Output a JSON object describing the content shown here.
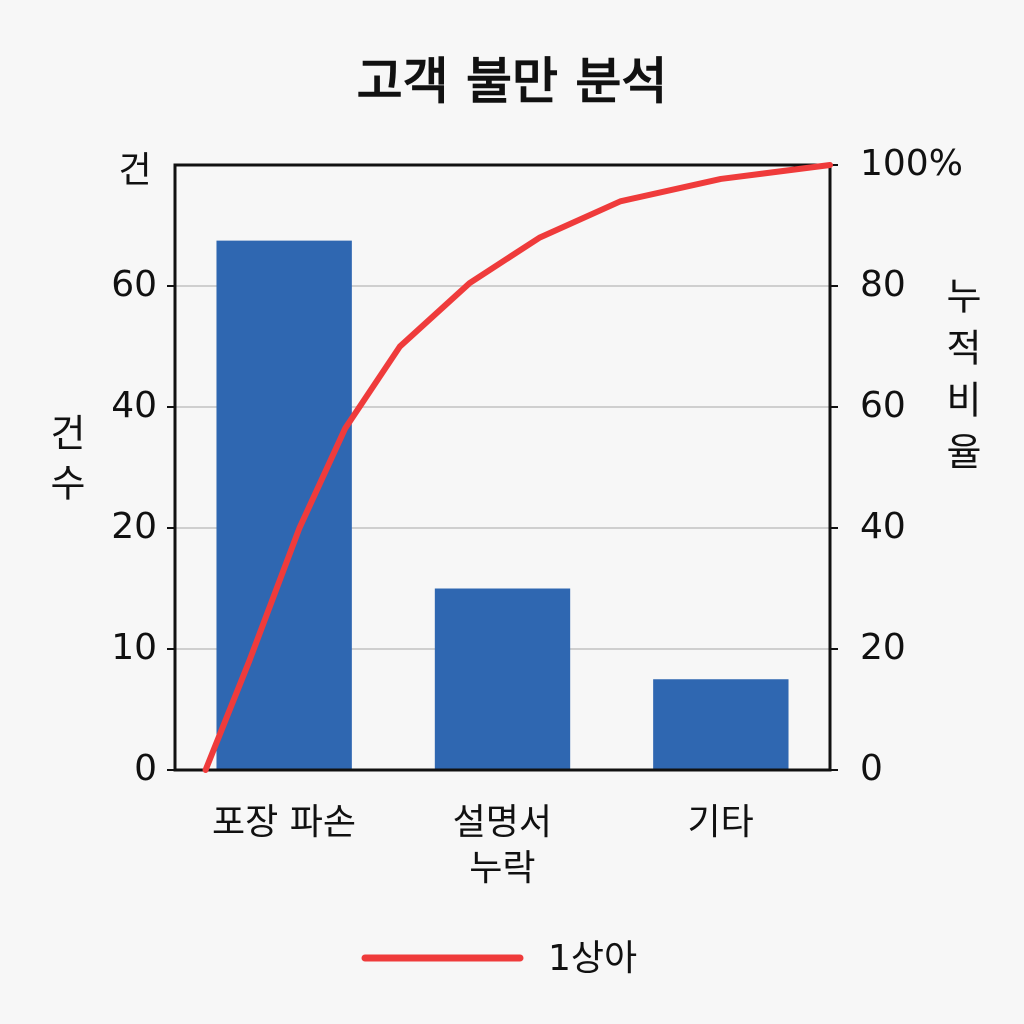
{
  "chart_data": {
    "type": "pareto",
    "title": "고객 불만 분석",
    "y_unit_label": "건",
    "ylabel": "건수",
    "y2label": "누적비율",
    "categories": [
      "포장 파손",
      "설명서\n누락",
      "기타"
    ],
    "series": [
      {
        "name": "건수",
        "type": "bar",
        "color": "#2f67b1",
        "values": [
          67.5,
          15,
          7.5
        ]
      },
      {
        "name": "1상아",
        "type": "line",
        "axis": "y2",
        "color": "#ef3b3b",
        "x": [
          -0.36,
          -0.16,
          0.07,
          0.28,
          0.53,
          0.85,
          1.17,
          1.54,
          2.0,
          2.5
        ],
        "values": [
          0,
          18,
          40,
          56.5,
          70,
          80.5,
          88,
          94,
          97.7,
          100
        ]
      }
    ],
    "xlim": [
      -0.5,
      2.5
    ],
    "ylim": [
      0,
      80
    ],
    "yticks": [
      0,
      10,
      20,
      40,
      60
    ],
    "y2lim": [
      0,
      100
    ],
    "y2ticks": [
      0,
      20,
      40,
      60,
      80,
      {
        "value": 100,
        "label": "100%"
      }
    ],
    "grid": true,
    "legend": "bottom"
  }
}
